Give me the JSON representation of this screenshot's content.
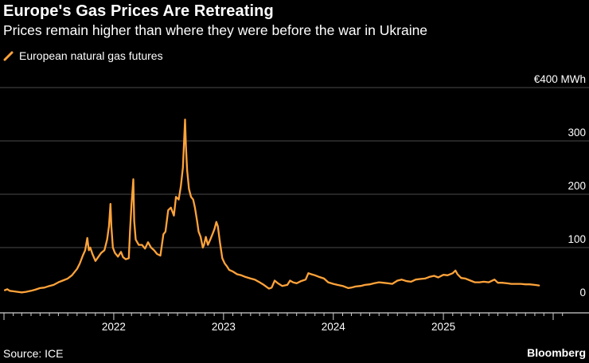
{
  "header": {
    "title": "Europe's Gas Prices Are Retreating",
    "subtitle": "Prices remain higher than where they were before the war in Ukraine"
  },
  "footer": {
    "source": "Source: ICE",
    "brand": "Bloomberg"
  },
  "colors": {
    "background": "#000000",
    "series": "#ffa33a",
    "grid": "#4a4a4a",
    "text": "#ffffff"
  },
  "chart_data": {
    "type": "line",
    "title": "Europe's Gas Prices Are Retreating",
    "subtitle": "Prices remain higher than where they were before the war in Ukraine",
    "xlabel": "",
    "ylabel": "",
    "y_unit_label": "€400 MWh",
    "ylim": [
      0,
      400
    ],
    "yticks": [
      {
        "value": 400,
        "label": "€400 MWh"
      },
      {
        "value": 300,
        "label": "300"
      },
      {
        "value": 200,
        "label": "200"
      },
      {
        "value": 100,
        "label": "100"
      },
      {
        "value": 0,
        "label": "0"
      }
    ],
    "xlim": [
      "2021-01-01",
      "2026-02-15"
    ],
    "xticks": [
      {
        "date": "2022-01-01",
        "label": "2022"
      },
      {
        "date": "2023-01-01",
        "label": "2023"
      },
      {
        "date": "2024-01-01",
        "label": "2024"
      },
      {
        "date": "2025-01-01",
        "label": "2025"
      }
    ],
    "grid": true,
    "legend_position": "top-left",
    "series": [
      {
        "name": "European natural gas futures",
        "color": "#ffa33a",
        "points": [
          [
            "2021-01-04",
            20
          ],
          [
            "2021-01-12",
            22
          ],
          [
            "2021-01-20",
            19
          ],
          [
            "2021-02-01",
            18
          ],
          [
            "2021-02-15",
            17
          ],
          [
            "2021-03-01",
            16
          ],
          [
            "2021-03-15",
            17
          ],
          [
            "2021-04-01",
            19
          ],
          [
            "2021-04-15",
            21
          ],
          [
            "2021-05-01",
            24
          ],
          [
            "2021-05-15",
            25
          ],
          [
            "2021-06-01",
            28
          ],
          [
            "2021-06-15",
            30
          ],
          [
            "2021-07-01",
            35
          ],
          [
            "2021-07-15",
            38
          ],
          [
            "2021-08-01",
            42
          ],
          [
            "2021-08-15",
            48
          ],
          [
            "2021-09-01",
            60
          ],
          [
            "2021-09-10",
            70
          ],
          [
            "2021-09-20",
            85
          ],
          [
            "2021-09-28",
            95
          ],
          [
            "2021-10-05",
            118
          ],
          [
            "2021-10-10",
            95
          ],
          [
            "2021-10-15",
            100
          ],
          [
            "2021-10-22",
            88
          ],
          [
            "2021-11-01",
            75
          ],
          [
            "2021-11-10",
            82
          ],
          [
            "2021-11-20",
            90
          ],
          [
            "2021-12-01",
            95
          ],
          [
            "2021-12-10",
            115
          ],
          [
            "2021-12-16",
            140
          ],
          [
            "2021-12-21",
            182
          ],
          [
            "2021-12-24",
            140
          ],
          [
            "2021-12-29",
            100
          ],
          [
            "2022-01-05",
            90
          ],
          [
            "2022-01-15",
            83
          ],
          [
            "2022-01-25",
            92
          ],
          [
            "2022-02-01",
            82
          ],
          [
            "2022-02-10",
            78
          ],
          [
            "2022-02-20",
            80
          ],
          [
            "2022-02-24",
            130
          ],
          [
            "2022-03-01",
            180
          ],
          [
            "2022-03-07",
            228
          ],
          [
            "2022-03-10",
            150
          ],
          [
            "2022-03-15",
            115
          ],
          [
            "2022-03-25",
            105
          ],
          [
            "2022-04-05",
            105
          ],
          [
            "2022-04-15",
            98
          ],
          [
            "2022-04-25",
            110
          ],
          [
            "2022-05-05",
            100
          ],
          [
            "2022-05-15",
            95
          ],
          [
            "2022-05-25",
            88
          ],
          [
            "2022-06-05",
            85
          ],
          [
            "2022-06-15",
            125
          ],
          [
            "2022-06-22",
            130
          ],
          [
            "2022-07-01",
            170
          ],
          [
            "2022-07-10",
            175
          ],
          [
            "2022-07-20",
            160
          ],
          [
            "2022-07-27",
            195
          ],
          [
            "2022-08-05",
            190
          ],
          [
            "2022-08-12",
            215
          ],
          [
            "2022-08-19",
            250
          ],
          [
            "2022-08-26",
            340
          ],
          [
            "2022-08-29",
            290
          ],
          [
            "2022-09-02",
            245
          ],
          [
            "2022-09-08",
            210
          ],
          [
            "2022-09-15",
            195
          ],
          [
            "2022-09-22",
            190
          ],
          [
            "2022-09-28",
            175
          ],
          [
            "2022-10-05",
            150
          ],
          [
            "2022-10-10",
            130
          ],
          [
            "2022-10-17",
            120
          ],
          [
            "2022-10-24",
            100
          ],
          [
            "2022-10-28",
            105
          ],
          [
            "2022-11-03",
            120
          ],
          [
            "2022-11-10",
            105
          ],
          [
            "2022-11-18",
            115
          ],
          [
            "2022-11-25",
            125
          ],
          [
            "2022-12-02",
            135
          ],
          [
            "2022-12-08",
            148
          ],
          [
            "2022-12-13",
            140
          ],
          [
            "2022-12-20",
            110
          ],
          [
            "2022-12-28",
            80
          ],
          [
            "2023-01-05",
            70
          ],
          [
            "2023-01-12",
            65
          ],
          [
            "2023-01-20",
            58
          ],
          [
            "2023-02-01",
            55
          ],
          [
            "2023-02-15",
            50
          ],
          [
            "2023-03-01",
            48
          ],
          [
            "2023-03-15",
            45
          ],
          [
            "2023-04-01",
            42
          ],
          [
            "2023-04-15",
            40
          ],
          [
            "2023-05-01",
            35
          ],
          [
            "2023-05-15",
            30
          ],
          [
            "2023-06-01",
            23
          ],
          [
            "2023-06-10",
            25
          ],
          [
            "2023-06-20",
            38
          ],
          [
            "2023-07-01",
            33
          ],
          [
            "2023-07-15",
            28
          ],
          [
            "2023-08-01",
            30
          ],
          [
            "2023-08-10",
            38
          ],
          [
            "2023-08-20",
            35
          ],
          [
            "2023-09-01",
            33
          ],
          [
            "2023-09-15",
            37
          ],
          [
            "2023-10-01",
            40
          ],
          [
            "2023-10-10",
            52
          ],
          [
            "2023-10-20",
            50
          ],
          [
            "2023-11-01",
            48
          ],
          [
            "2023-11-15",
            45
          ],
          [
            "2023-12-01",
            42
          ],
          [
            "2023-12-15",
            35
          ],
          [
            "2024-01-01",
            32
          ],
          [
            "2024-01-15",
            30
          ],
          [
            "2024-02-01",
            28
          ],
          [
            "2024-02-20",
            24
          ],
          [
            "2024-03-01",
            25
          ],
          [
            "2024-03-15",
            27
          ],
          [
            "2024-04-01",
            28
          ],
          [
            "2024-04-15",
            30
          ],
          [
            "2024-05-01",
            31
          ],
          [
            "2024-05-15",
            33
          ],
          [
            "2024-06-01",
            35
          ],
          [
            "2024-06-15",
            34
          ],
          [
            "2024-07-01",
            33
          ],
          [
            "2024-07-15",
            32
          ],
          [
            "2024-08-01",
            38
          ],
          [
            "2024-08-15",
            40
          ],
          [
            "2024-09-01",
            37
          ],
          [
            "2024-09-15",
            36
          ],
          [
            "2024-10-01",
            40
          ],
          [
            "2024-10-15",
            41
          ],
          [
            "2024-11-01",
            42
          ],
          [
            "2024-11-15",
            45
          ],
          [
            "2024-12-01",
            47
          ],
          [
            "2024-12-15",
            44
          ],
          [
            "2025-01-01",
            49
          ],
          [
            "2025-01-15",
            48
          ],
          [
            "2025-02-01",
            52
          ],
          [
            "2025-02-10",
            57
          ],
          [
            "2025-02-17",
            50
          ],
          [
            "2025-03-01",
            43
          ],
          [
            "2025-03-15",
            42
          ],
          [
            "2025-04-01",
            38
          ],
          [
            "2025-04-15",
            35
          ],
          [
            "2025-05-01",
            35
          ],
          [
            "2025-05-15",
            36
          ],
          [
            "2025-06-01",
            35
          ],
          [
            "2025-06-20",
            40
          ],
          [
            "2025-07-01",
            34
          ],
          [
            "2025-07-15",
            34
          ],
          [
            "2025-08-01",
            33
          ],
          [
            "2025-08-15",
            32
          ],
          [
            "2025-09-01",
            32
          ],
          [
            "2025-09-15",
            32
          ],
          [
            "2025-10-01",
            31
          ],
          [
            "2025-10-15",
            31
          ],
          [
            "2025-11-01",
            30
          ],
          [
            "2025-11-15",
            29
          ]
        ]
      }
    ]
  }
}
